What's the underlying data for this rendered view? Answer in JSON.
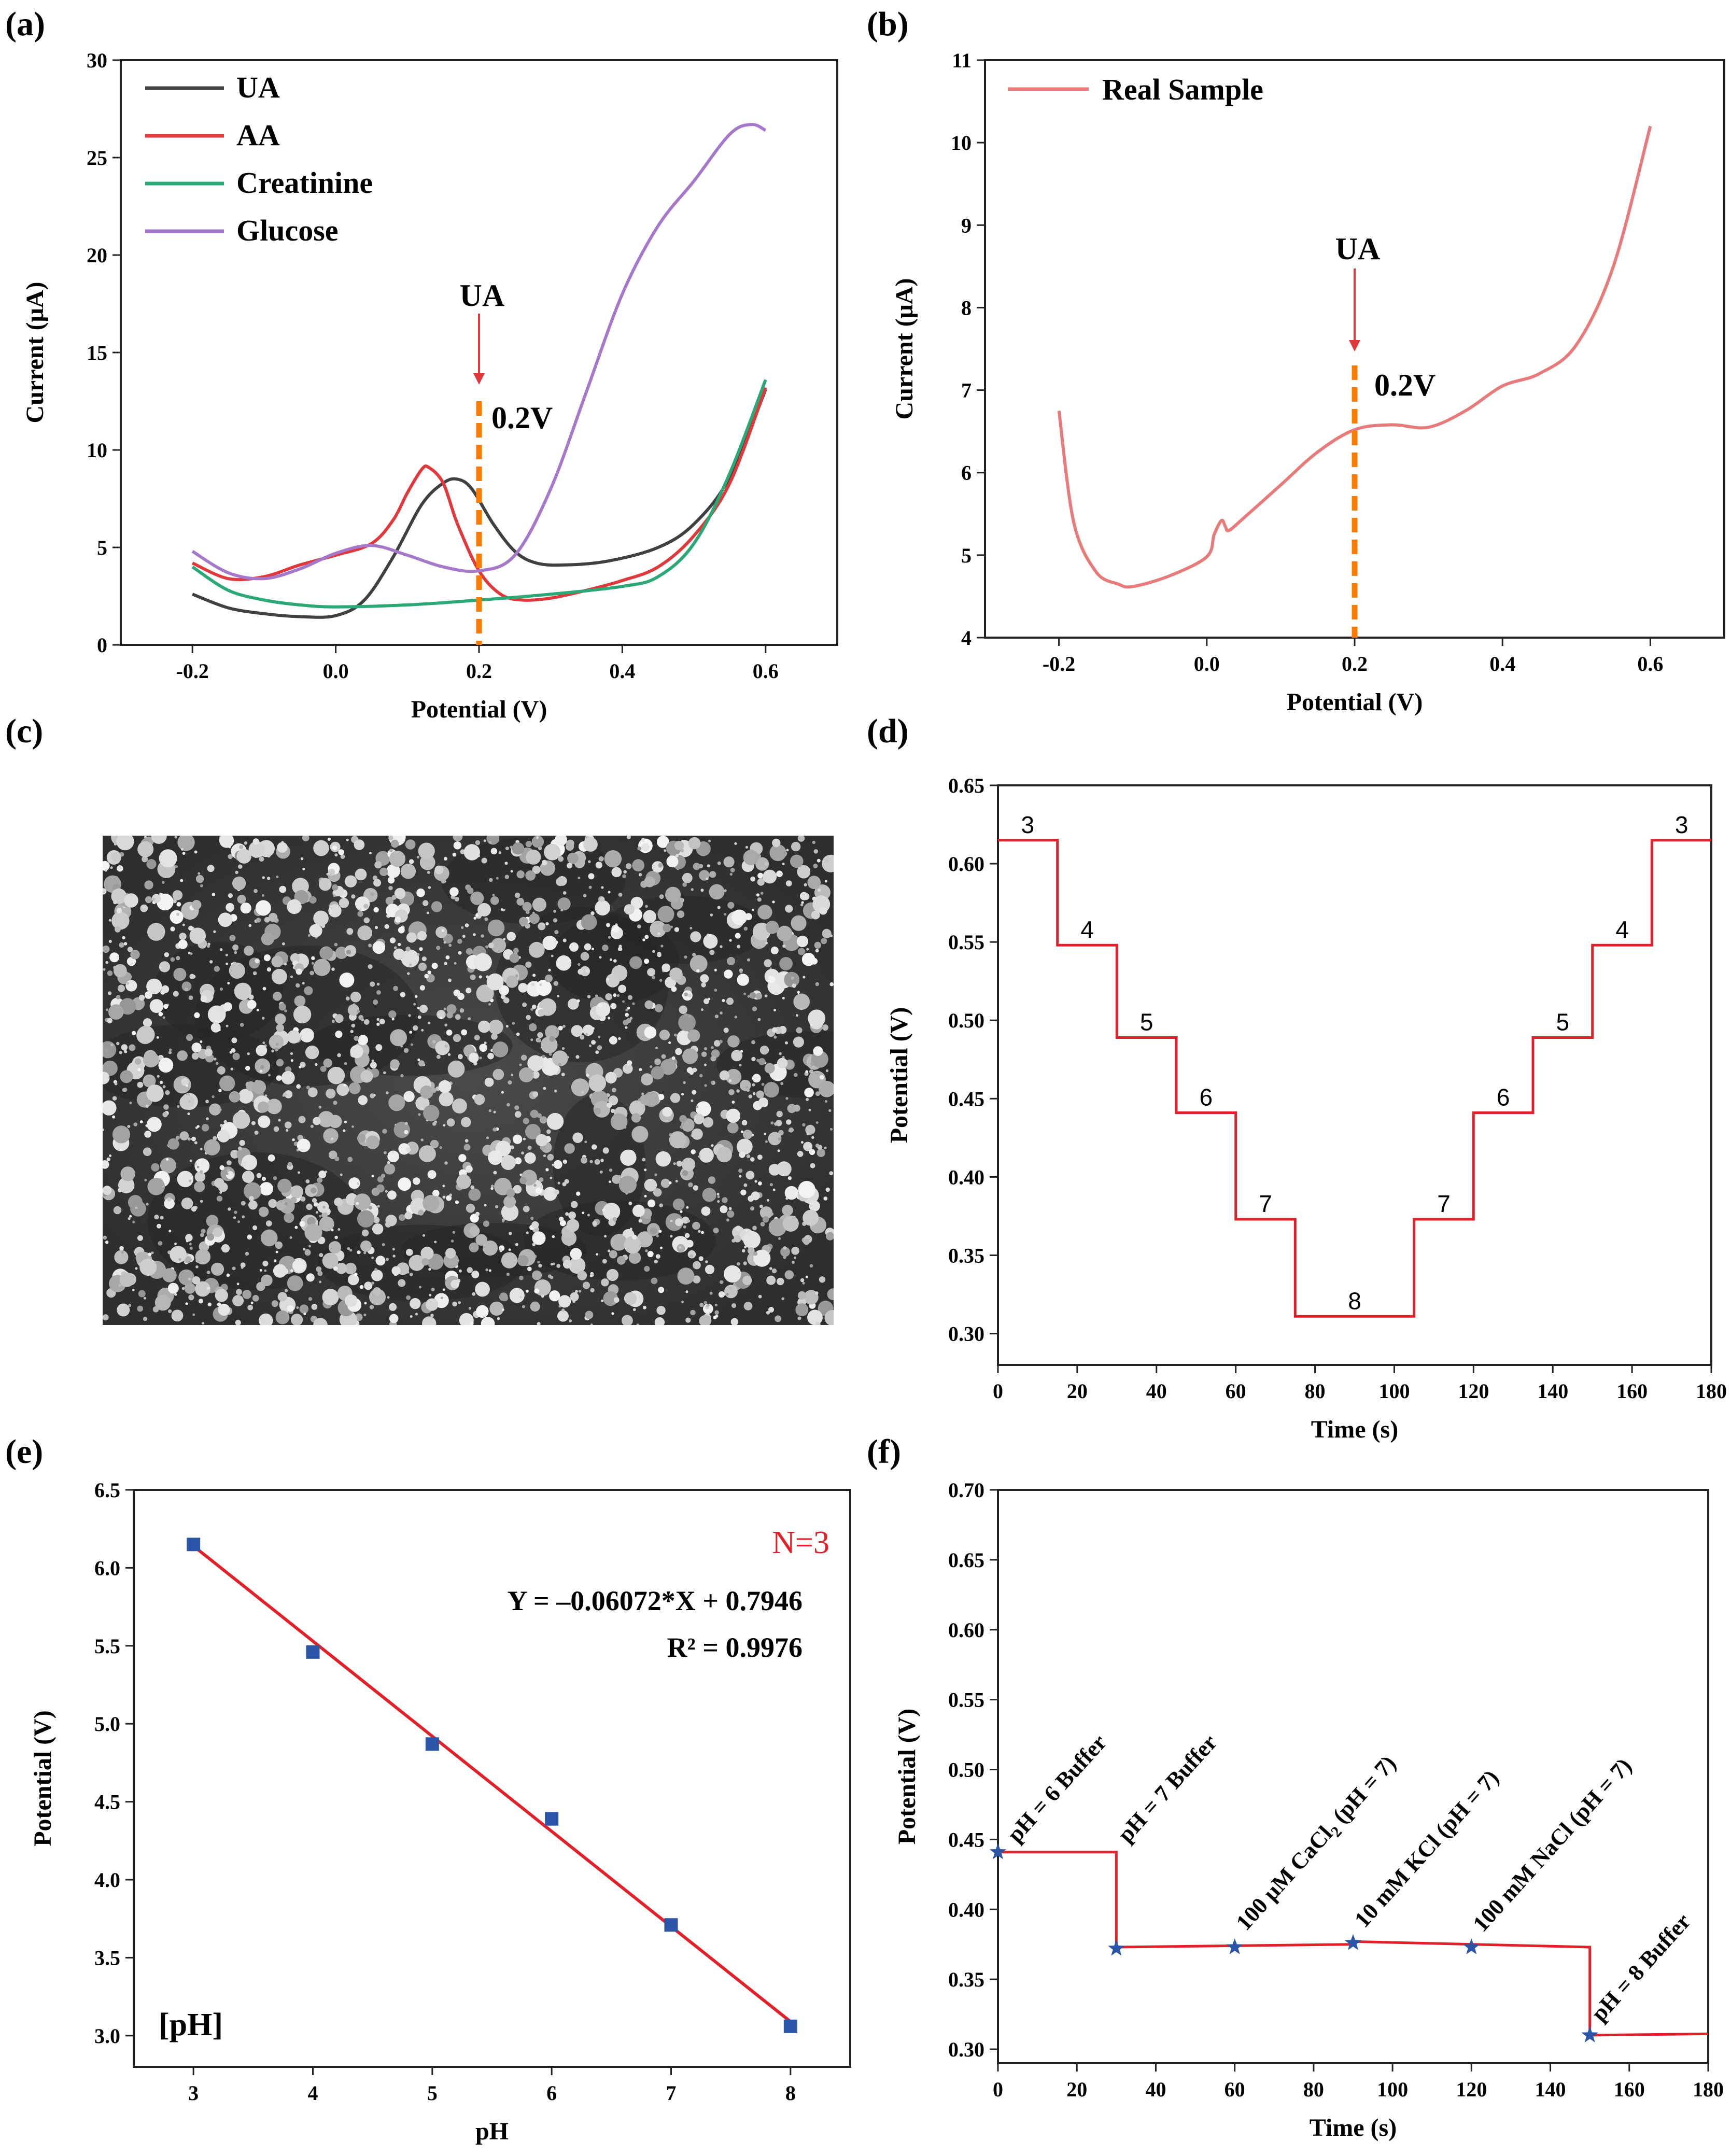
{
  "colors": {
    "UA": "#404040",
    "AA": "#e0383b",
    "Creatinine": "#2aa876",
    "Glucose": "#a678cc",
    "real": "#e87a7a",
    "marker": "#ff7a00",
    "step": "#e2202a",
    "point": "#2b56a8",
    "fit": "#e2202a"
  },
  "chart_data": [
    {
      "panel": "(a)",
      "type": "line",
      "xlabel": "Potential (V)",
      "ylabel": "Current (μA)",
      "xlim": [
        -0.3,
        0.7
      ],
      "ylim": [
        0,
        30
      ],
      "xticks": [
        -0.2,
        0.0,
        0.2,
        0.4,
        0.6
      ],
      "xtick_labels": [
        "-0.2",
        "0.0",
        "0.2",
        "0.4",
        "0.6"
      ],
      "yticks": [
        0,
        5,
        10,
        15,
        20,
        25,
        30
      ],
      "ytick_labels": [
        "0",
        "5",
        "10",
        "15",
        "20",
        "25",
        "30"
      ],
      "legend": [
        "UA",
        "AA",
        "Creatinine",
        "Glucose"
      ],
      "series": [
        {
          "name": "UA",
          "x": [
            -0.2,
            -0.15,
            -0.1,
            -0.05,
            0.0,
            0.04,
            0.08,
            0.12,
            0.15,
            0.17,
            0.19,
            0.22,
            0.25,
            0.28,
            0.32,
            0.38,
            0.45,
            0.5,
            0.55,
            0.6
          ],
          "y": [
            2.6,
            1.9,
            1.6,
            1.45,
            1.5,
            2.3,
            4.5,
            7.2,
            8.3,
            8.5,
            8.0,
            6.2,
            4.8,
            4.2,
            4.1,
            4.3,
            5.0,
            6.2,
            8.6,
            13.1
          ]
        },
        {
          "name": "AA",
          "x": [
            -0.2,
            -0.15,
            -0.1,
            -0.05,
            0.0,
            0.05,
            0.08,
            0.1,
            0.12,
            0.13,
            0.15,
            0.17,
            0.2,
            0.23,
            0.26,
            0.3,
            0.35,
            0.4,
            0.45,
            0.5,
            0.55,
            0.6
          ],
          "y": [
            4.2,
            3.4,
            3.5,
            4.1,
            4.6,
            5.2,
            6.4,
            7.8,
            9.0,
            9.1,
            8.3,
            6.2,
            3.8,
            2.6,
            2.3,
            2.4,
            2.8,
            3.3,
            4.0,
            5.6,
            8.3,
            13.2
          ]
        },
        {
          "name": "Creatinine",
          "x": [
            -0.2,
            -0.15,
            -0.1,
            -0.05,
            0.0,
            0.1,
            0.2,
            0.3,
            0.4,
            0.45,
            0.5,
            0.55,
            0.6
          ],
          "y": [
            4.0,
            2.8,
            2.3,
            2.05,
            1.95,
            2.05,
            2.3,
            2.6,
            3.0,
            3.5,
            5.2,
            8.8,
            13.6
          ]
        },
        {
          "name": "Glucose",
          "x": [
            -0.2,
            -0.15,
            -0.1,
            -0.05,
            0.0,
            0.05,
            0.1,
            0.15,
            0.2,
            0.25,
            0.3,
            0.35,
            0.4,
            0.45,
            0.5,
            0.55,
            0.58,
            0.6
          ],
          "y": [
            4.8,
            3.7,
            3.4,
            3.9,
            4.7,
            5.1,
            4.6,
            4.0,
            3.8,
            4.6,
            8.0,
            13.0,
            18.0,
            21.5,
            23.8,
            26.2,
            26.7,
            26.4
          ]
        }
      ],
      "marker_x": 0.2,
      "marker_ytop": 12.5,
      "arrow_label": "UA",
      "marker_label": "0.2V"
    },
    {
      "panel": "(b)",
      "type": "line",
      "xlabel": "Potential (V)",
      "ylabel": "Current (μA)",
      "xlim": [
        -0.3,
        0.7
      ],
      "ylim": [
        4,
        11
      ],
      "xticks": [
        -0.2,
        0.0,
        0.2,
        0.4,
        0.6
      ],
      "xtick_labels": [
        "-0.2",
        "0.0",
        "0.2",
        "0.4",
        "0.6"
      ],
      "yticks": [
        4,
        5,
        6,
        7,
        8,
        9,
        10,
        11
      ],
      "ytick_labels": [
        "4",
        "5",
        "6",
        "7",
        "8",
        "9",
        "10",
        "11"
      ],
      "legend": [
        "Real Sample"
      ],
      "series": [
        {
          "name": "Real Sample",
          "x": [
            -0.2,
            -0.18,
            -0.15,
            -0.12,
            -0.1,
            -0.05,
            0.0,
            0.01,
            0.02,
            0.025,
            0.03,
            0.05,
            0.1,
            0.15,
            0.2,
            0.25,
            0.3,
            0.35,
            0.4,
            0.45,
            0.5,
            0.55,
            0.6
          ],
          "y": [
            6.75,
            5.4,
            4.8,
            4.65,
            4.62,
            4.75,
            4.98,
            5.25,
            5.42,
            5.35,
            5.3,
            5.45,
            5.85,
            6.25,
            6.52,
            6.58,
            6.55,
            6.75,
            7.05,
            7.2,
            7.55,
            8.5,
            10.2
          ]
        }
      ],
      "marker_x": 0.2,
      "marker_ytop": 7.3,
      "arrow_label": "UA",
      "marker_label": "0.2V"
    },
    {
      "panel": "(d)",
      "type": "line",
      "xlabel": "Time (s)",
      "ylabel": "Potential (V)",
      "xlim": [
        0,
        180
      ],
      "ylim": [
        0.28,
        0.65
      ],
      "xticks": [
        0,
        20,
        40,
        60,
        80,
        100,
        120,
        140,
        160,
        180
      ],
      "xtick_labels": [
        "0",
        "20",
        "40",
        "60",
        "80",
        "100",
        "120",
        "140",
        "160",
        "180"
      ],
      "yticks": [
        0.3,
        0.35,
        0.4,
        0.45,
        0.5,
        0.55,
        0.6,
        0.65
      ],
      "ytick_labels": [
        "0.30",
        "0.35",
        "0.40",
        "0.45",
        "0.50",
        "0.55",
        "0.60",
        "0.65"
      ],
      "steps": [
        {
          "t0": 0,
          "t1": 15,
          "v": 0.615,
          "label": "3"
        },
        {
          "t0": 15,
          "t1": 30,
          "v": 0.548,
          "label": "4"
        },
        {
          "t0": 30,
          "t1": 45,
          "v": 0.489,
          "label": "5"
        },
        {
          "t0": 45,
          "t1": 60,
          "v": 0.441,
          "label": "6"
        },
        {
          "t0": 60,
          "t1": 75,
          "v": 0.373,
          "label": "7"
        },
        {
          "t0": 75,
          "t1": 105,
          "v": 0.311,
          "label": "8"
        },
        {
          "t0": 105,
          "t1": 120,
          "v": 0.373,
          "label": "7"
        },
        {
          "t0": 120,
          "t1": 135,
          "v": 0.441,
          "label": "6"
        },
        {
          "t0": 135,
          "t1": 150,
          "v": 0.489,
          "label": "5"
        },
        {
          "t0": 150,
          "t1": 165,
          "v": 0.548,
          "label": "4"
        },
        {
          "t0": 165,
          "t1": 180,
          "v": 0.615,
          "label": "3"
        }
      ]
    },
    {
      "panel": "(e)",
      "type": "scatter",
      "xlabel": "pH",
      "ylabel": "Potential (V)",
      "xlim": [
        2.5,
        8.5
      ],
      "ylim": [
        2.8,
        6.5
      ],
      "xticks": [
        3,
        4,
        5,
        6,
        7,
        8
      ],
      "xtick_labels": [
        "3",
        "4",
        "5",
        "6",
        "7",
        "8"
      ],
      "yticks": [
        3.0,
        3.5,
        4.0,
        4.5,
        5.0,
        5.5,
        6.0,
        6.5
      ],
      "ytick_labels": [
        "3.0",
        "3.5",
        "4.0",
        "4.5",
        "5.0",
        "5.5",
        "6.0",
        "6.5"
      ],
      "x": [
        3,
        4,
        5,
        6,
        7,
        8
      ],
      "y": [
        6.15,
        5.46,
        4.87,
        4.39,
        3.71,
        3.06
      ],
      "fit": {
        "x": [
          3,
          8
        ],
        "y": [
          6.14,
          3.09
        ]
      },
      "n_label": "N=3",
      "equation": "Y = –0.06072*X + 0.7946",
      "r2": "R² = 0.9976",
      "corner_label": "[pH]"
    },
    {
      "panel": "(f)",
      "type": "line",
      "xlabel": "Time (s)",
      "ylabel": "Potential (V)",
      "xlim": [
        0,
        180
      ],
      "ylim": [
        0.29,
        0.7
      ],
      "xticks": [
        0,
        20,
        40,
        60,
        80,
        100,
        120,
        140,
        160,
        180
      ],
      "xtick_labels": [
        "0",
        "20",
        "40",
        "60",
        "80",
        "100",
        "120",
        "140",
        "160",
        "180"
      ],
      "yticks": [
        0.3,
        0.35,
        0.4,
        0.45,
        0.5,
        0.55,
        0.6,
        0.65,
        0.7
      ],
      "ytick_labels": [
        "0.30",
        "0.35",
        "0.40",
        "0.45",
        "0.50",
        "0.55",
        "0.60",
        "0.65",
        "0.70"
      ],
      "segments": [
        {
          "t0": 0,
          "t1": 30,
          "v": 0.441
        },
        {
          "t0": 30,
          "t1": 90,
          "v": 0.373,
          "v1": 0.375
        },
        {
          "t0": 90,
          "t1": 150,
          "v": 0.377,
          "v1": 0.373
        },
        {
          "t0": 150,
          "t1": 180,
          "v": 0.31,
          "v1": 0.311
        }
      ],
      "stars": [
        {
          "t": 0,
          "v": 0.441
        },
        {
          "t": 30,
          "v": 0.372
        },
        {
          "t": 60,
          "v": 0.373
        },
        {
          "t": 90,
          "v": 0.376
        },
        {
          "t": 120,
          "v": 0.373
        },
        {
          "t": 150,
          "v": 0.31
        }
      ],
      "annotations": [
        {
          "t": 2,
          "v": 0.447,
          "text": "pH = 6 Buffer"
        },
        {
          "t": 30,
          "v": 0.447,
          "text": "pH = 7 Buffer"
        },
        {
          "t": 60,
          "v": 0.384,
          "text": "100 μM CaCl",
          "sub": "2",
          "tail": " (pH = 7)"
        },
        {
          "t": 90,
          "v": 0.386,
          "text": "10 mM KCl (pH = 7)"
        },
        {
          "t": 120,
          "v": 0.383,
          "text": "100 mM NaCl (pH = 7)"
        },
        {
          "t": 150,
          "v": 0.319,
          "text": "pH = 8 Buffer"
        }
      ]
    }
  ],
  "panel_c": {
    "label": "(c)"
  }
}
